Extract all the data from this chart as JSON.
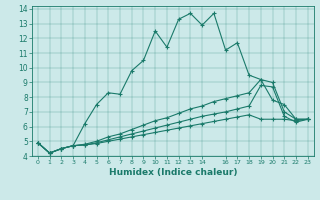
{
  "xlabel": "Humidex (Indice chaleur)",
  "ylabel": "",
  "xlim": [
    -0.5,
    23.5
  ],
  "ylim": [
    4,
    14.2
  ],
  "xticks": [
    0,
    1,
    2,
    3,
    4,
    5,
    6,
    7,
    8,
    9,
    10,
    11,
    12,
    13,
    14,
    16,
    17,
    18,
    19,
    20,
    21,
    22,
    23
  ],
  "yticks": [
    4,
    5,
    6,
    7,
    8,
    9,
    10,
    11,
    12,
    13,
    14
  ],
  "bg_color": "#cce9e9",
  "line_color": "#1a7a6a",
  "lines": [
    {
      "x": [
        0,
        1,
        2,
        3,
        4,
        5,
        6,
        7,
        8,
        9,
        10,
        11,
        12,
        13,
        14,
        15,
        16,
        17,
        18,
        19,
        20,
        21,
        22,
        23
      ],
      "y": [
        4.9,
        4.2,
        4.5,
        4.7,
        6.2,
        7.5,
        8.3,
        8.2,
        9.8,
        10.5,
        12.5,
        11.4,
        13.3,
        13.7,
        12.9,
        13.7,
        11.2,
        11.7,
        9.5,
        9.2,
        7.8,
        7.5,
        6.5,
        6.5
      ]
    },
    {
      "x": [
        0,
        1,
        2,
        3,
        4,
        5,
        6,
        7,
        8,
        9,
        10,
        11,
        12,
        13,
        14,
        15,
        16,
        17,
        18,
        19,
        20,
        21,
        22,
        23
      ],
      "y": [
        4.9,
        4.2,
        4.5,
        4.7,
        4.8,
        5.0,
        5.3,
        5.5,
        5.8,
        6.1,
        6.4,
        6.6,
        6.9,
        7.2,
        7.4,
        7.7,
        7.9,
        8.1,
        8.3,
        9.2,
        9.0,
        7.0,
        6.5,
        6.5
      ]
    },
    {
      "x": [
        0,
        1,
        2,
        3,
        4,
        5,
        6,
        7,
        8,
        9,
        10,
        11,
        12,
        13,
        14,
        15,
        16,
        17,
        18,
        19,
        20,
        21,
        22,
        23
      ],
      "y": [
        4.9,
        4.2,
        4.5,
        4.7,
        4.75,
        4.9,
        5.1,
        5.3,
        5.5,
        5.7,
        5.9,
        6.1,
        6.3,
        6.5,
        6.7,
        6.85,
        7.0,
        7.2,
        7.4,
        8.8,
        8.7,
        6.7,
        6.3,
        6.5
      ]
    },
    {
      "x": [
        0,
        1,
        2,
        3,
        4,
        5,
        6,
        7,
        8,
        9,
        10,
        11,
        12,
        13,
        14,
        15,
        16,
        17,
        18,
        19,
        20,
        21,
        22,
        23
      ],
      "y": [
        4.9,
        4.2,
        4.5,
        4.7,
        4.75,
        4.85,
        5.0,
        5.15,
        5.3,
        5.45,
        5.6,
        5.75,
        5.9,
        6.05,
        6.2,
        6.35,
        6.5,
        6.65,
        6.8,
        6.5,
        6.5,
        6.5,
        6.4,
        6.5
      ]
    }
  ]
}
